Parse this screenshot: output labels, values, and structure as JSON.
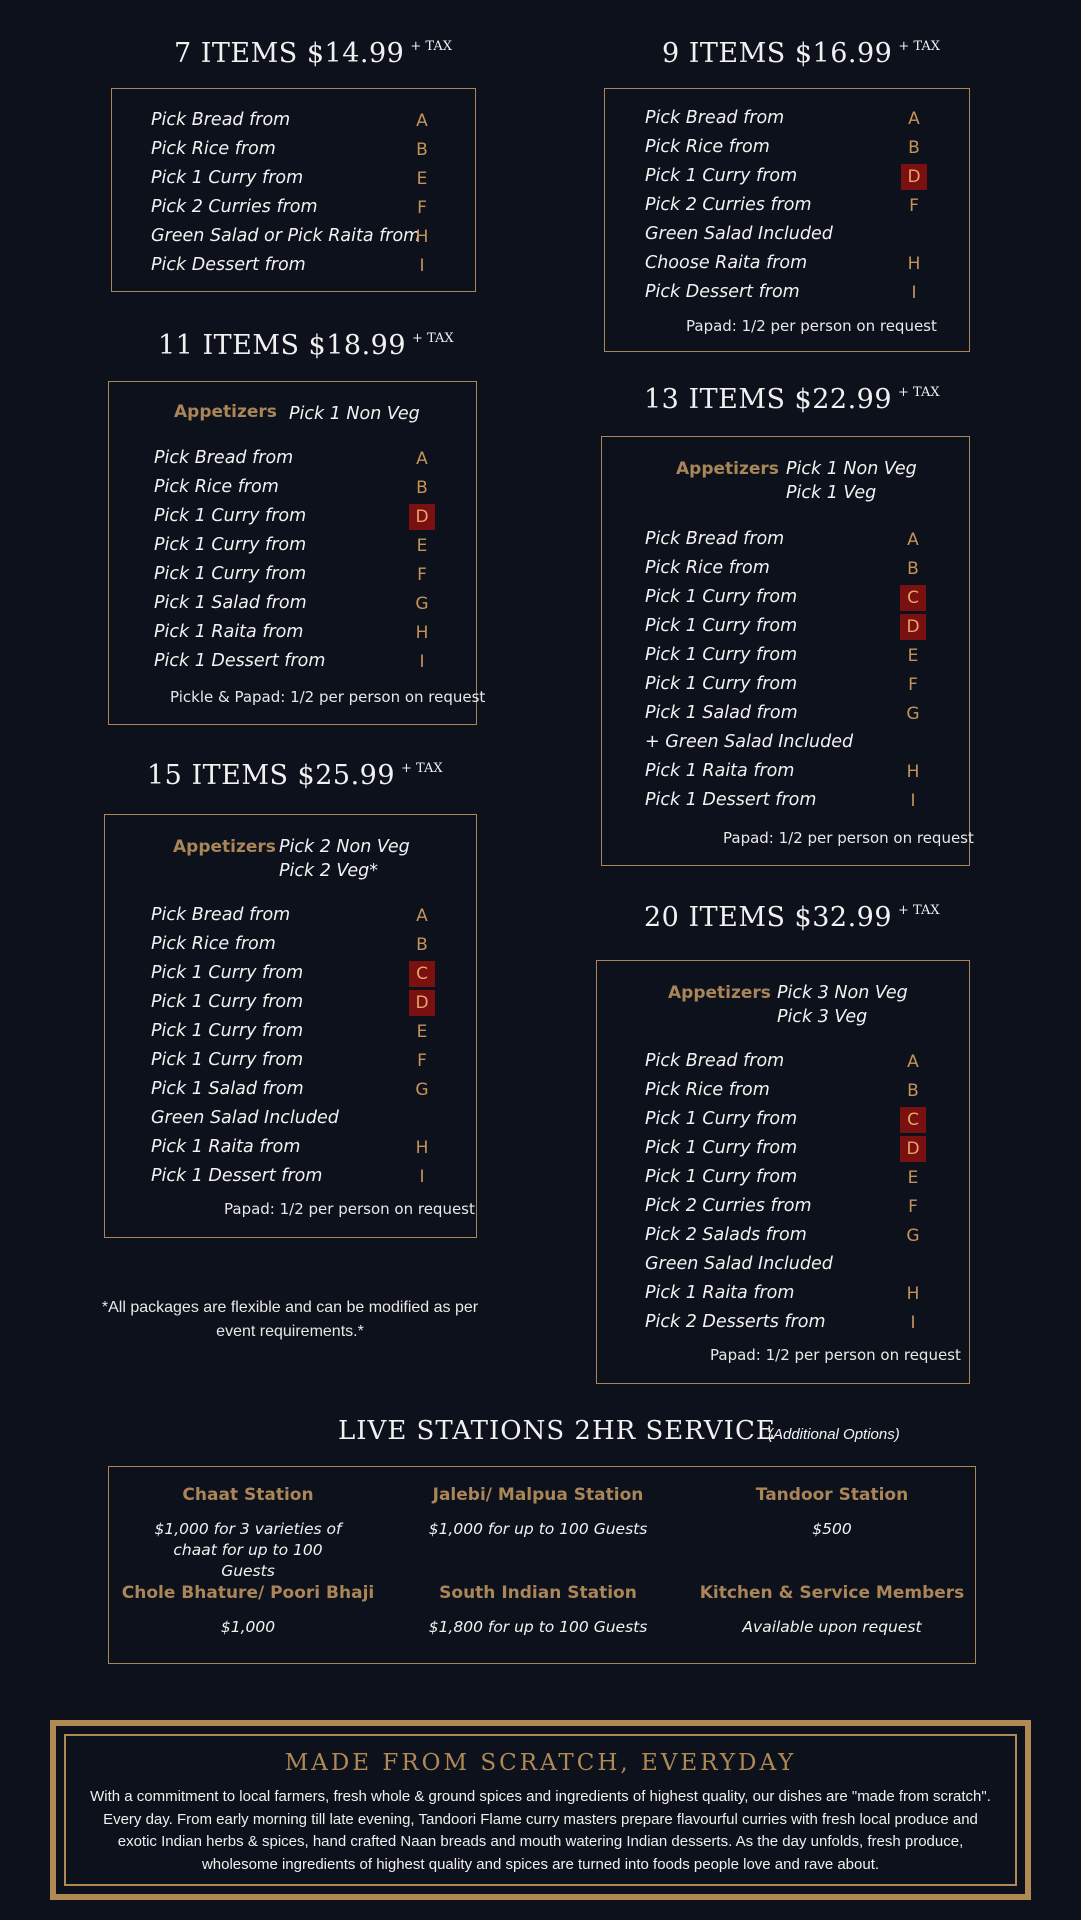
{
  "packages": [
    {
      "id": "p7",
      "title": "7 ITEMS $14.99",
      "tax": "+ TAX",
      "appetizers": null,
      "rows": [
        {
          "label": "Pick Bread from",
          "code": "A",
          "highlight": false
        },
        {
          "label": "Pick Rice from",
          "code": "B",
          "highlight": false
        },
        {
          "label": "Pick 1 Curry from",
          "code": "E",
          "highlight": false
        },
        {
          "label": "Pick 2 Curries from",
          "code": "F",
          "highlight": false
        },
        {
          "label": "Green Salad or Pick Raita from",
          "code": "H",
          "highlight": false
        },
        {
          "label": "Pick Dessert from",
          "code": "I",
          "highlight": false
        }
      ],
      "note": ""
    },
    {
      "id": "p9",
      "title": "9 ITEMS $16.99",
      "tax": "+ TAX",
      "appetizers": null,
      "rows": [
        {
          "label": "Pick Bread from",
          "code": "A",
          "highlight": false
        },
        {
          "label": "Pick Rice from",
          "code": "B",
          "highlight": false
        },
        {
          "label": "Pick 1 Curry from",
          "code": "D",
          "highlight": true
        },
        {
          "label": "Pick 2 Curries from",
          "code": "F",
          "highlight": false
        },
        {
          "label": "Green Salad Included",
          "code": "",
          "highlight": false
        },
        {
          "label": "Choose Raita from",
          "code": "H",
          "highlight": false
        },
        {
          "label": "Pick Dessert from",
          "code": "I",
          "highlight": false
        }
      ],
      "note": "Papad: 1/2 per person on request"
    },
    {
      "id": "p11",
      "title": "11 ITEMS $18.99",
      "tax": "+ TAX",
      "appetizers": {
        "label": "Appetizers",
        "lines": [
          "Pick 1 Non Veg"
        ]
      },
      "rows": [
        {
          "label": "Pick Bread from",
          "code": "A",
          "highlight": false
        },
        {
          "label": "Pick Rice from",
          "code": "B",
          "highlight": false
        },
        {
          "label": "Pick 1 Curry from",
          "code": "D",
          "highlight": true
        },
        {
          "label": "Pick 1 Curry from",
          "code": "E",
          "highlight": false
        },
        {
          "label": "Pick 1 Curry from",
          "code": "F",
          "highlight": false
        },
        {
          "label": "Pick 1 Salad from",
          "code": "G",
          "highlight": false
        },
        {
          "label": "Pick 1 Raita from",
          "code": "H",
          "highlight": false
        },
        {
          "label": "Pick 1 Dessert from",
          "code": "I",
          "highlight": false
        }
      ],
      "note": "Pickle & Papad: 1/2 per person on request"
    },
    {
      "id": "p13",
      "title": "13 ITEMS $22.99",
      "tax": "+ TAX",
      "appetizers": {
        "label": "Appetizers",
        "lines": [
          "Pick 1 Non Veg",
          "Pick 1 Veg"
        ]
      },
      "rows": [
        {
          "label": "Pick Bread from",
          "code": "A",
          "highlight": false
        },
        {
          "label": "Pick Rice from",
          "code": "B",
          "highlight": false
        },
        {
          "label": "Pick 1 Curry from",
          "code": "C",
          "highlight": true
        },
        {
          "label": "Pick 1 Curry from",
          "code": "D",
          "highlight": true
        },
        {
          "label": "Pick 1 Curry from",
          "code": "E",
          "highlight": false
        },
        {
          "label": "Pick 1 Curry from",
          "code": "F",
          "highlight": false
        },
        {
          "label": "Pick 1 Salad from",
          "code": "G",
          "highlight": false
        },
        {
          "label": "+ Green Salad Included",
          "code": "",
          "highlight": false
        },
        {
          "label": "Pick 1 Raita from",
          "code": "H",
          "highlight": false
        },
        {
          "label": "Pick 1 Dessert from",
          "code": "I",
          "highlight": false
        }
      ],
      "note": "Papad: 1/2 per person on request"
    },
    {
      "id": "p15",
      "title": "15 ITEMS $25.99",
      "tax": "+ TAX",
      "appetizers": {
        "label": "Appetizers",
        "lines": [
          "Pick 2 Non Veg",
          "Pick 2 Veg*"
        ]
      },
      "rows": [
        {
          "label": "Pick Bread from",
          "code": "A",
          "highlight": false
        },
        {
          "label": "Pick Rice from",
          "code": "B",
          "highlight": false
        },
        {
          "label": "Pick 1 Curry from",
          "code": "C",
          "highlight": true
        },
        {
          "label": "Pick 1 Curry from",
          "code": "D",
          "highlight": true
        },
        {
          "label": "Pick 1 Curry from",
          "code": "E",
          "highlight": false
        },
        {
          "label": "Pick 1 Curry from",
          "code": "F",
          "highlight": false
        },
        {
          "label": "Pick 1 Salad from",
          "code": "G",
          "highlight": false
        },
        {
          "label": "Green Salad Included",
          "code": "",
          "highlight": false
        },
        {
          "label": "Pick 1 Raita from",
          "code": "H",
          "highlight": false
        },
        {
          "label": "Pick 1 Dessert from",
          "code": "I",
          "highlight": false
        }
      ],
      "note": "Papad: 1/2 per person on request"
    },
    {
      "id": "p20",
      "title": "20 ITEMS $32.99",
      "tax": "+ TAX",
      "appetizers": {
        "label": "Appetizers",
        "lines": [
          "Pick 3 Non Veg",
          "Pick 3 Veg"
        ]
      },
      "rows": [
        {
          "label": "Pick Bread from",
          "code": "A",
          "highlight": false
        },
        {
          "label": "Pick Rice from",
          "code": "B",
          "highlight": false
        },
        {
          "label": "Pick 1 Curry from",
          "code": "C",
          "highlight": true
        },
        {
          "label": "Pick 1 Curry from",
          "code": "D",
          "highlight": true
        },
        {
          "label": "Pick 1 Curry from",
          "code": "E",
          "highlight": false
        },
        {
          "label": "Pick 2 Curries from",
          "code": "F",
          "highlight": false
        },
        {
          "label": "Pick 2 Salads from",
          "code": "G",
          "highlight": false
        },
        {
          "label": "Green Salad Included",
          "code": "",
          "highlight": false
        },
        {
          "label": "Pick 1 Raita from",
          "code": "H",
          "highlight": false
        },
        {
          "label": "Pick 2 Desserts from",
          "code": "I",
          "highlight": false
        }
      ],
      "note": "Papad: 1/2 per person on request"
    }
  ],
  "disclaimer": "*All packages are flexible and can be modified as per event requirements.*",
  "live_stations": {
    "title": "LIVE STATIONS 2HR SERVICE",
    "subtitle": "(Additional Options)",
    "stations": [
      {
        "name": "Chaat Station",
        "price": "$1,000 for 3 varieties of chaat for up to 100 Guests"
      },
      {
        "name": "Jalebi/ Malpua Station",
        "price": "$1,000 for up to 100 Guests"
      },
      {
        "name": "Tandoor Station",
        "price": "$500"
      },
      {
        "name": "Chole Bhature/ Poori Bhaji",
        "price": "$1,000"
      },
      {
        "name": "South Indian Station",
        "price": "$1,800 for up to 100 Guests"
      },
      {
        "name": "Kitchen & Service Members",
        "price": "Available upon request"
      }
    ]
  },
  "scratch": {
    "title": "MADE FROM SCRATCH, EVERYDAY",
    "text": "With a commitment to local farmers, fresh whole & ground spices and ingredients of highest quality, our dishes are \"made from scratch\". Every day.  From early morning till late evening, Tandoori Flame curry masters prepare flavourful curries with fresh local produce and exotic Indian herbs & spices, hand crafted Naan breads and mouth watering Indian desserts.  As the day unfolds, fresh produce, wholesome ingredients of highest quality and spices are turned into foods people love and rave about."
  },
  "colors": {
    "background": "#0d111b",
    "gold": "#a98558",
    "highlight": "#7a1010",
    "code": "#c4935a"
  }
}
